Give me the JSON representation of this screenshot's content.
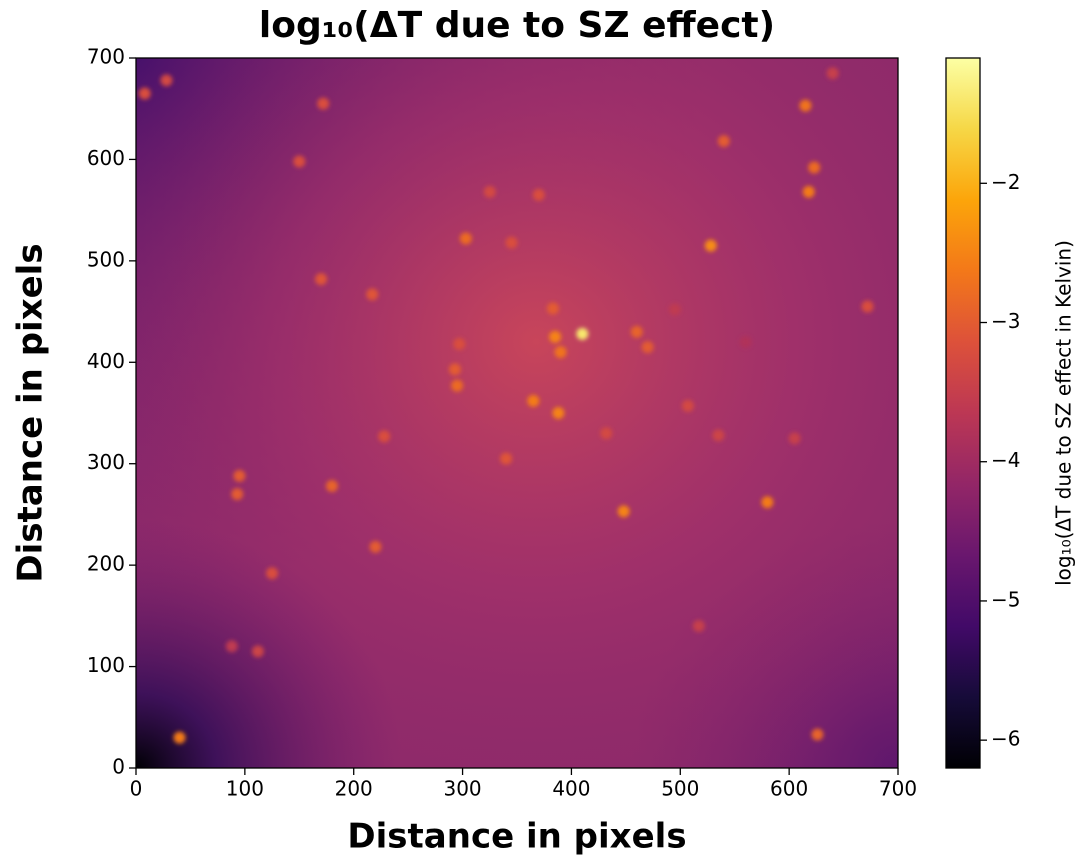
{
  "chart_data": {
    "type": "heatmap",
    "title": "log₁₀(ΔT due to SZ effect)",
    "xlabel": "Distance in pixels",
    "ylabel": "Distance in pixels",
    "colorbar_label": "log₁₀(ΔT due to SZ effect in Kelvin)",
    "colormap": "inferno",
    "xlim": [
      0,
      700
    ],
    "ylim": [
      0,
      700
    ],
    "xticks": [
      0,
      100,
      200,
      300,
      400,
      500,
      600,
      700
    ],
    "yticks": [
      0,
      100,
      200,
      300,
      400,
      500,
      600,
      700
    ],
    "clim": [
      -6.2,
      -1.1
    ],
    "cticks": [
      {
        "value": -2,
        "label": "−2"
      },
      {
        "value": -3,
        "label": "−3"
      },
      {
        "value": -4,
        "label": "−4"
      },
      {
        "value": -5,
        "label": "−5"
      },
      {
        "value": -6,
        "label": "−6"
      }
    ],
    "sources": {
      "x": [
        410,
        385,
        390,
        460,
        470,
        365,
        340,
        388,
        528,
        580,
        448,
        303,
        180,
        95,
        93,
        40,
        8,
        28,
        172,
        615,
        618,
        623,
        540,
        672,
        217,
        170,
        295,
        293,
        220,
        125,
        626,
        150,
        325,
        345,
        228,
        517,
        112,
        88,
        605,
        535,
        507,
        297,
        383,
        432,
        495,
        560,
        370,
        640
      ],
      "y": [
        428,
        425,
        410,
        430,
        415,
        362,
        305,
        350,
        515,
        262,
        253,
        522,
        278,
        288,
        270,
        30,
        665,
        678,
        655,
        653,
        568,
        592,
        618,
        455,
        467,
        482,
        377,
        393,
        218,
        192,
        33,
        598,
        568,
        518,
        327,
        140,
        115,
        120,
        325,
        328,
        357,
        418,
        453,
        330,
        452,
        420,
        565,
        685
      ],
      "values": [
        -1.4,
        -2.5,
        -2.7,
        -2.9,
        -3.0,
        -2.6,
        -3.1,
        -2.5,
        -2.4,
        -2.6,
        -2.5,
        -2.8,
        -2.9,
        -3.0,
        -3.0,
        -2.6,
        -3.2,
        -3.3,
        -3.2,
        -2.7,
        -2.6,
        -2.8,
        -3.0,
        -3.2,
        -3.1,
        -3.1,
        -2.8,
        -3.0,
        -3.0,
        -3.2,
        -2.9,
        -3.2,
        -3.3,
        -3.2,
        -3.2,
        -3.5,
        -3.4,
        -3.6,
        -3.5,
        -3.4,
        -3.3,
        -3.2,
        -3.0,
        -3.3,
        -3.6,
        -3.8,
        -3.2,
        -3.5
      ]
    }
  }
}
